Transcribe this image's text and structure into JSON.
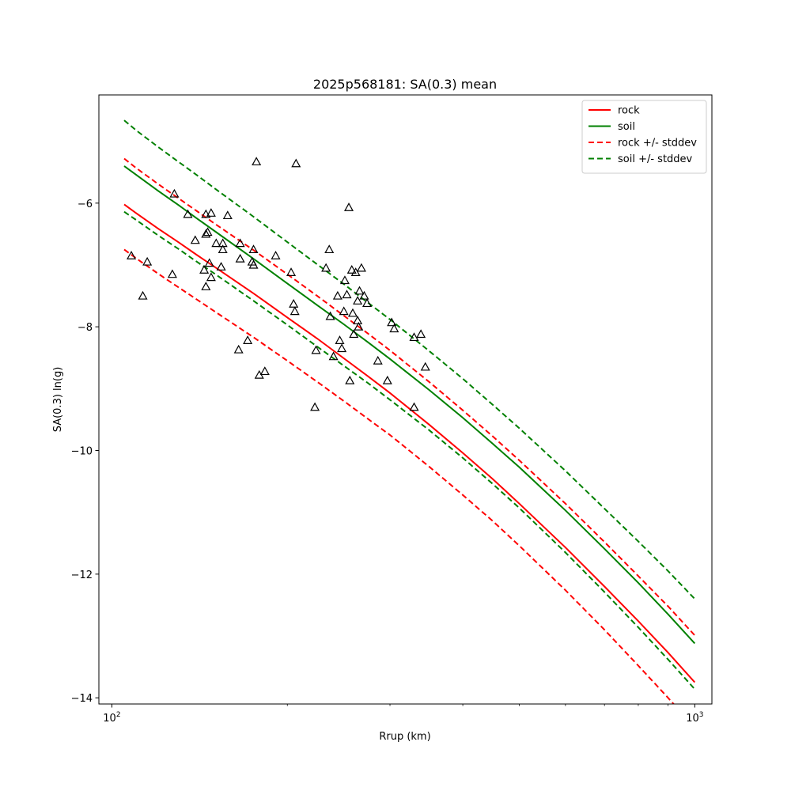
{
  "chart_data": {
    "type": "line",
    "title": "2025p568181: SA(0.3) mean",
    "xlabel": "Rrup (km)",
    "ylabel": "SA(0.3) ln(g)",
    "xscale": "log",
    "xlim": [
      95,
      1070
    ],
    "ylim": [
      -14.1,
      -4.25
    ],
    "x_ticks": [
      {
        "value": 100,
        "base": "10",
        "exp": "2"
      },
      {
        "value": 1000,
        "base": "10",
        "exp": "3"
      }
    ],
    "y_ticks": [
      {
        "value": -14,
        "label": "−14"
      },
      {
        "value": -12,
        "label": "−12"
      },
      {
        "value": -10,
        "label": "−10"
      },
      {
        "value": -8,
        "label": "−8"
      },
      {
        "value": -6,
        "label": "−6"
      }
    ],
    "legend_position": "top-right",
    "grid": false,
    "x": [
      105,
      110,
      120,
      130,
      140,
      150,
      175,
      200,
      225,
      250,
      275,
      300,
      350,
      400,
      450,
      500,
      600,
      700,
      800,
      900,
      1000
    ],
    "series": [
      {
        "name": "rock",
        "color": "#ff0000",
        "dash": "solid",
        "values": [
          -6.02,
          -6.16,
          -6.41,
          -6.63,
          -6.84,
          -7.03,
          -7.46,
          -7.85,
          -8.19,
          -8.51,
          -8.8,
          -9.07,
          -9.58,
          -10.04,
          -10.46,
          -10.86,
          -11.57,
          -12.2,
          -12.76,
          -13.27,
          -13.75
        ]
      },
      {
        "name": "soil",
        "color": "#008000",
        "dash": "solid",
        "values": [
          -5.4,
          -5.54,
          -5.8,
          -6.03,
          -6.25,
          -6.45,
          -6.9,
          -7.3,
          -7.65,
          -7.96,
          -8.25,
          -8.52,
          -9.02,
          -9.47,
          -9.89,
          -10.27,
          -10.97,
          -11.59,
          -12.14,
          -12.65,
          -13.12
        ]
      },
      {
        "name": "rock +/- stddev",
        "color": "#ff0000",
        "dash": "dashed",
        "values": [
          -5.28,
          -5.43,
          -5.69,
          -5.92,
          -6.13,
          -6.33,
          -6.76,
          -7.15,
          -7.5,
          -7.82,
          -8.11,
          -8.38,
          -8.89,
          -9.35,
          -9.77,
          -10.16,
          -10.86,
          -11.48,
          -12.03,
          -12.52,
          -12.99
        ]
      },
      {
        "name": "",
        "color": "#ff0000",
        "dash": "dashed",
        "values": [
          -6.75,
          -6.89,
          -7.14,
          -7.36,
          -7.56,
          -7.75,
          -8.17,
          -8.55,
          -8.89,
          -9.2,
          -9.49,
          -9.75,
          -10.26,
          -10.72,
          -11.14,
          -11.54,
          -12.26,
          -12.9,
          -13.48,
          -14.0,
          -14.48
        ]
      },
      {
        "name": "soil +/- stddev",
        "color": "#008000",
        "dash": "dashed",
        "values": [
          -4.66,
          -4.82,
          -5.09,
          -5.33,
          -5.55,
          -5.76,
          -6.22,
          -6.63,
          -6.99,
          -7.31,
          -7.61,
          -7.88,
          -8.39,
          -8.84,
          -9.26,
          -9.64,
          -10.33,
          -10.94,
          -11.47,
          -11.95,
          -12.4
        ]
      },
      {
        "name": "",
        "color": "#008000",
        "dash": "dashed",
        "values": [
          -6.14,
          -6.27,
          -6.52,
          -6.74,
          -6.95,
          -7.14,
          -7.58,
          -7.97,
          -8.32,
          -8.63,
          -8.91,
          -9.18,
          -9.67,
          -10.12,
          -10.54,
          -10.93,
          -11.65,
          -12.29,
          -12.86,
          -13.38,
          -13.86
        ]
      }
    ],
    "observations": [
      {
        "x": 108,
        "y": -6.85
      },
      {
        "x": 113,
        "y": -7.5
      },
      {
        "x": 115,
        "y": -6.95
      },
      {
        "x": 127,
        "y": -7.15
      },
      {
        "x": 128,
        "y": -5.85
      },
      {
        "x": 135,
        "y": -6.18
      },
      {
        "x": 139,
        "y": -6.6
      },
      {
        "x": 144,
        "y": -7.08
      },
      {
        "x": 145,
        "y": -6.5
      },
      {
        "x": 146,
        "y": -6.47
      },
      {
        "x": 145,
        "y": -6.18
      },
      {
        "x": 148,
        "y": -6.16
      },
      {
        "x": 145,
        "y": -7.35
      },
      {
        "x": 147,
        "y": -6.97
      },
      {
        "x": 148,
        "y": -7.2
      },
      {
        "x": 151,
        "y": -6.65
      },
      {
        "x": 154,
        "y": -7.03
      },
      {
        "x": 155,
        "y": -6.75
      },
      {
        "x": 155,
        "y": -6.65
      },
      {
        "x": 158,
        "y": -6.2
      },
      {
        "x": 166,
        "y": -6.9
      },
      {
        "x": 166,
        "y": -6.65
      },
      {
        "x": 165,
        "y": -8.37
      },
      {
        "x": 171,
        "y": -8.22
      },
      {
        "x": 174,
        "y": -6.95
      },
      {
        "x": 175,
        "y": -7.0
      },
      {
        "x": 175,
        "y": -6.75
      },
      {
        "x": 177,
        "y": -5.33
      },
      {
        "x": 179,
        "y": -8.78
      },
      {
        "x": 183,
        "y": -8.72
      },
      {
        "x": 191,
        "y": -6.85
      },
      {
        "x": 203,
        "y": -7.12
      },
      {
        "x": 205,
        "y": -7.63
      },
      {
        "x": 206,
        "y": -7.75
      },
      {
        "x": 207,
        "y": -5.36
      },
      {
        "x": 224,
        "y": -8.38
      },
      {
        "x": 223,
        "y": -9.3
      },
      {
        "x": 233,
        "y": -7.05
      },
      {
        "x": 236,
        "y": -6.75
      },
      {
        "x": 237,
        "y": -7.83
      },
      {
        "x": 240,
        "y": -8.48
      },
      {
        "x": 244,
        "y": -7.5
      },
      {
        "x": 246,
        "y": -8.22
      },
      {
        "x": 248,
        "y": -8.35
      },
      {
        "x": 250,
        "y": -7.75
      },
      {
        "x": 251,
        "y": -7.25
      },
      {
        "x": 253,
        "y": -7.48
      },
      {
        "x": 255,
        "y": -6.07
      },
      {
        "x": 256,
        "y": -8.87
      },
      {
        "x": 258,
        "y": -7.08
      },
      {
        "x": 259,
        "y": -7.78
      },
      {
        "x": 260,
        "y": -8.12
      },
      {
        "x": 262,
        "y": -7.12
      },
      {
        "x": 264,
        "y": -7.58
      },
      {
        "x": 264,
        "y": -7.9
      },
      {
        "x": 265,
        "y": -8.0
      },
      {
        "x": 266,
        "y": -7.42
      },
      {
        "x": 268,
        "y": -7.05
      },
      {
        "x": 271,
        "y": -7.5
      },
      {
        "x": 274,
        "y": -7.62
      },
      {
        "x": 286,
        "y": -8.55
      },
      {
        "x": 297,
        "y": -8.87
      },
      {
        "x": 302,
        "y": -7.93
      },
      {
        "x": 305,
        "y": -8.03
      },
      {
        "x": 330,
        "y": -8.17
      },
      {
        "x": 330,
        "y": -9.3
      },
      {
        "x": 339,
        "y": -8.12
      },
      {
        "x": 345,
        "y": -8.65
      }
    ]
  }
}
